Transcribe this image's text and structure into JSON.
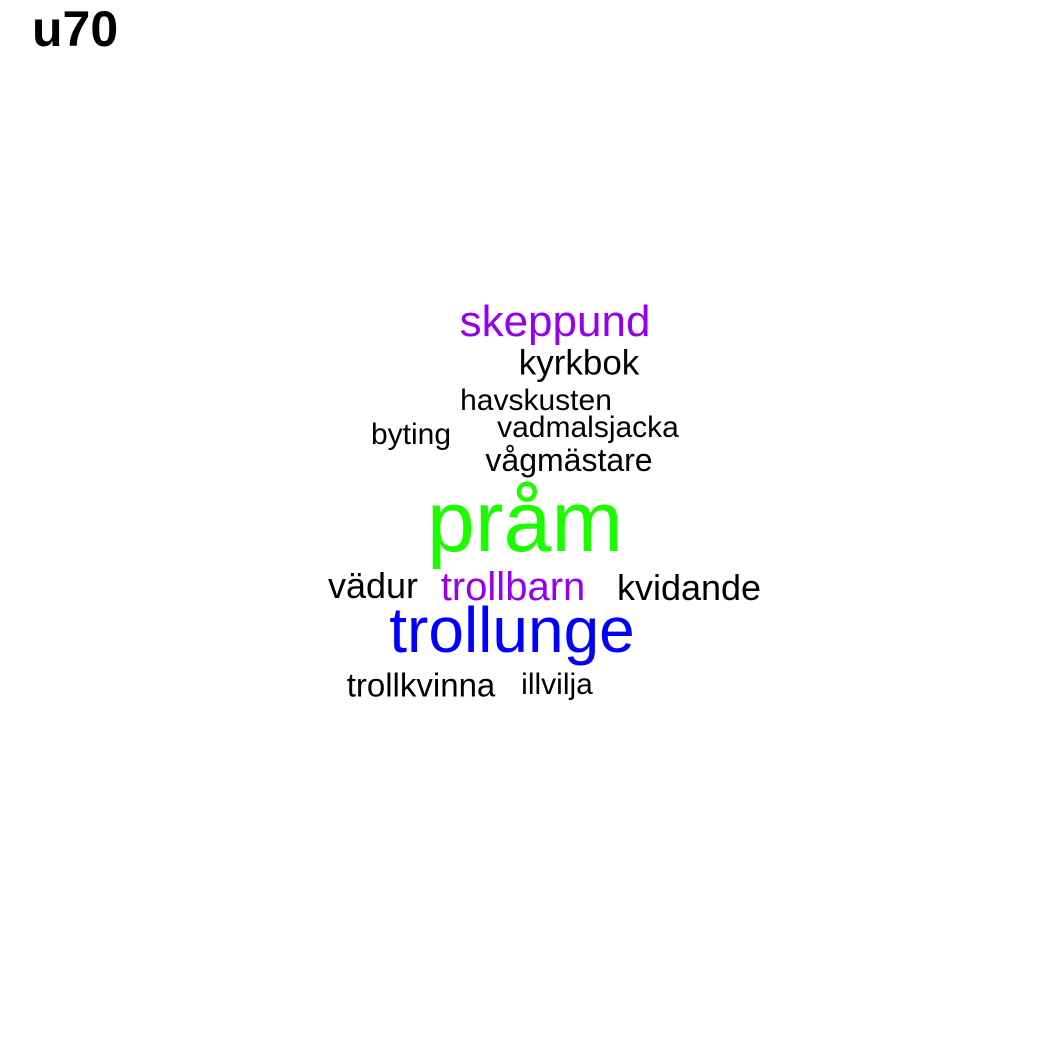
{
  "title": "u70",
  "words": [
    {
      "text": "skeppund",
      "color": "#9400ee"
    },
    {
      "text": "kyrkbok",
      "color": "#000000"
    },
    {
      "text": "havskusten",
      "color": "#000000"
    },
    {
      "text": "vadmalsjacka",
      "color": "#000000"
    },
    {
      "text": "byting",
      "color": "#000000"
    },
    {
      "text": "vågmästare",
      "color": "#000000"
    },
    {
      "text": "pråm",
      "color": "#1dfb00"
    },
    {
      "text": "vädur",
      "color": "#000000"
    },
    {
      "text": "trollbarn",
      "color": "#9400ee"
    },
    {
      "text": "kvidande",
      "color": "#000000"
    },
    {
      "text": "trollunge",
      "color": "#0000ff"
    },
    {
      "text": "trollkvinna",
      "color": "#000000"
    },
    {
      "text": "illvilja",
      "color": "#000000"
    }
  ]
}
